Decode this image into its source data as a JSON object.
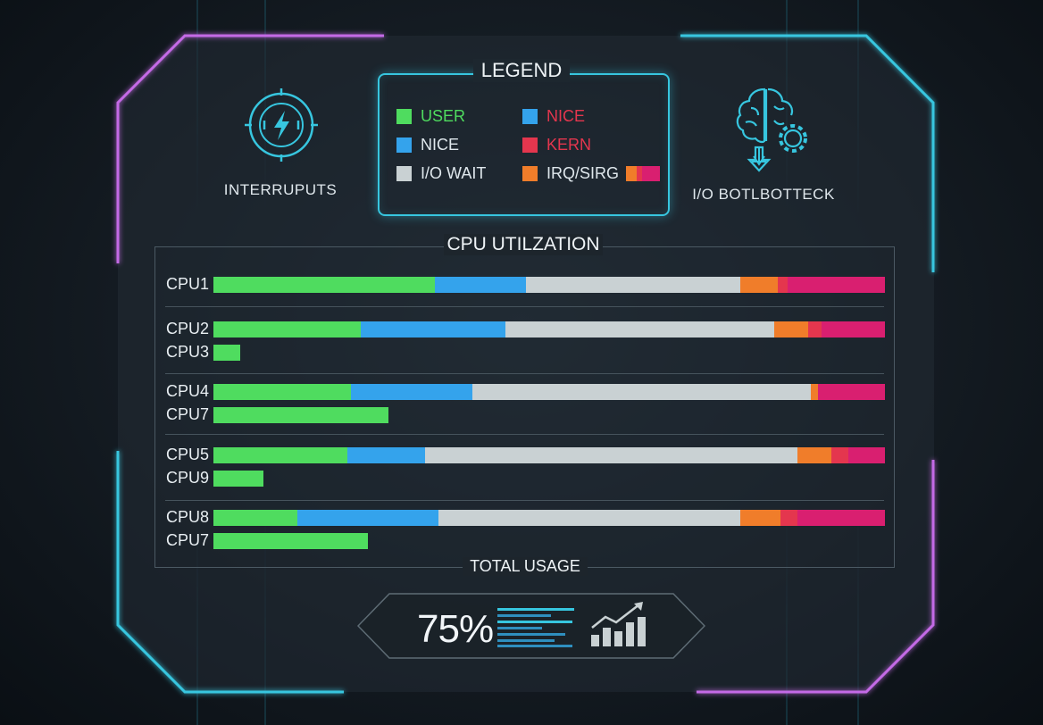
{
  "colors": {
    "user": "#4fdc5f",
    "nice": "#34a3ec",
    "iowait": "#c9d1d3",
    "irq": "#f07d2a",
    "kern": "#e4364e",
    "pink": "#d91f70"
  },
  "stats": {
    "interrupts_label": "INTERRUPUTS",
    "interrupts_icon": "lightning-bolt-icon",
    "io_label": "I/O BOTLBOTTECK",
    "io_icon": "brain-gear-icon"
  },
  "legend": {
    "title": "LEGEND",
    "items": [
      {
        "label": "USER",
        "color": "#4fdc5f",
        "text_color": "#4fdc5f"
      },
      {
        "label": "NICE",
        "color": "#34a3ec",
        "text_color": "#dfe7ec"
      },
      {
        "label": "I/O WAIT",
        "color": "#c9d1d3",
        "text_color": "#dfe7ec"
      },
      {
        "label": "NICE",
        "color": "#34a3ec",
        "text_color": "#e4364e"
      },
      {
        "label": "KERN",
        "color": "#e4364e",
        "text_color": "#e4364e"
      },
      {
        "label": "IRQ/SIRG",
        "color": "#f07d2a",
        "text_color": "#dfe7ec"
      }
    ]
  },
  "chart_data": {
    "type": "bar",
    "orientation": "horizontal",
    "stacked": true,
    "title": "CPU UTILZATION",
    "xlim": [
      0,
      100
    ],
    "segment_order": [
      "user",
      "nice",
      "iowait",
      "irq",
      "kern",
      "pink"
    ],
    "categories": [
      "CPU1",
      "CPU2",
      "CPU3",
      "CPU4",
      "CPU7",
      "CPU5",
      "CPU9",
      "CPU8",
      "CPU7"
    ],
    "series": [
      {
        "key": "user",
        "values": [
          33,
          22,
          4,
          20.5,
          26,
          20,
          7.5,
          12.5,
          23
        ]
      },
      {
        "key": "nice",
        "values": [
          13.5,
          21.5,
          0,
          18,
          0,
          11.5,
          0,
          21,
          0
        ]
      },
      {
        "key": "iowait",
        "values": [
          32,
          40,
          0,
          50.5,
          0,
          55.5,
          0,
          45,
          0
        ]
      },
      {
        "key": "irq",
        "values": [
          5.5,
          5,
          0,
          1,
          0,
          5,
          0,
          6,
          0
        ]
      },
      {
        "key": "kern",
        "values": [
          1.5,
          2,
          0,
          0,
          0,
          2.5,
          0,
          2.5,
          0
        ]
      },
      {
        "key": "pink",
        "values": [
          14.5,
          9.5,
          0,
          10,
          0,
          5.5,
          0,
          13,
          0
        ]
      }
    ]
  },
  "total": {
    "label": "TOTAL USAGE",
    "value": "75%",
    "sparkline_icon": "bars-list-icon",
    "trend_icon": "trend-chart-icon"
  }
}
